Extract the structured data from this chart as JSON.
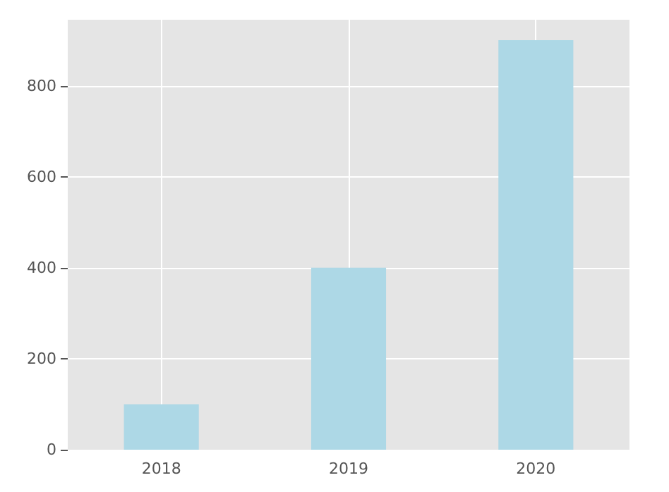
{
  "chart_data": {
    "type": "bar",
    "categories": [
      "2018",
      "2019",
      "2020"
    ],
    "values": [
      100,
      400,
      900
    ],
    "color": "#add8e6",
    "ylim": [
      0,
      945
    ],
    "yticks": [
      0,
      200,
      400,
      600,
      800
    ],
    "grid": true
  }
}
